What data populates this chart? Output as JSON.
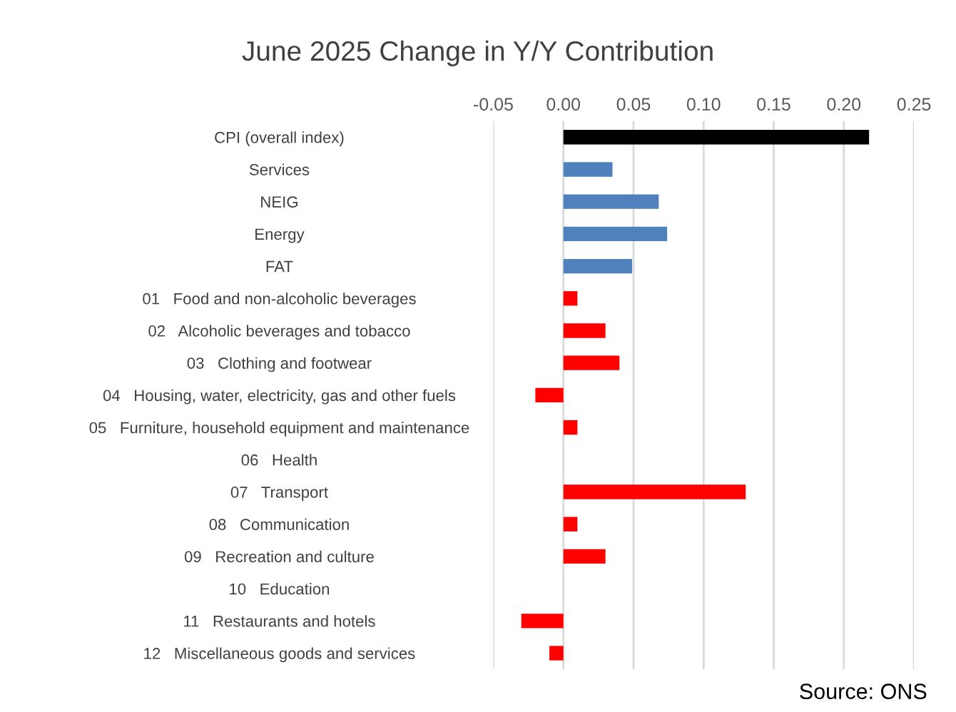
{
  "chart_data": {
    "type": "bar",
    "orientation": "horizontal",
    "title": "June 2025 Change in Y/Y Contribution",
    "categories": [
      "CPI (overall index)",
      "Services",
      "NEIG",
      "Energy",
      "FAT",
      "01   Food and non-alcoholic beverages",
      "02   Alcoholic beverages and tobacco",
      "03   Clothing and footwear",
      "04   Housing, water, electricity, gas and other fuels",
      "05   Furniture, household equipment and maintenance",
      "06   Health",
      "07   Transport",
      "08   Communication",
      "09   Recreation and culture",
      "10   Education",
      "11   Restaurants and hotels",
      "12   Miscellaneous goods and services"
    ],
    "values": [
      0.218,
      0.035,
      0.068,
      0.074,
      0.049,
      0.01,
      0.03,
      0.04,
      -0.02,
      0.01,
      0,
      0.13,
      0.01,
      0.03,
      0,
      -0.03,
      -0.01
    ],
    "colors": [
      "#000000",
      "#4f81bd",
      "#4f81bd",
      "#4f81bd",
      "#4f81bd",
      "#ff0000",
      "#ff0000",
      "#ff0000",
      "#ff0000",
      "#ff0000",
      "#ff0000",
      "#ff0000",
      "#ff0000",
      "#ff0000",
      "#ff0000",
      "#ff0000",
      "#ff0000"
    ],
    "xlim": [
      -0.05,
      0.25
    ],
    "xticks": [
      {
        "value": -0.05,
        "label": "-0.05"
      },
      {
        "value": 0,
        "label": "0.00"
      },
      {
        "value": 0.05,
        "label": "0.05"
      },
      {
        "value": 0.1,
        "label": "0.10"
      },
      {
        "value": 0.15,
        "label": "0.15"
      },
      {
        "value": 0.2,
        "label": "0.20"
      },
      {
        "value": 0.25,
        "label": "0.25"
      }
    ],
    "grid": "x",
    "legend": false,
    "annotations": [
      "Source: ONS"
    ]
  }
}
